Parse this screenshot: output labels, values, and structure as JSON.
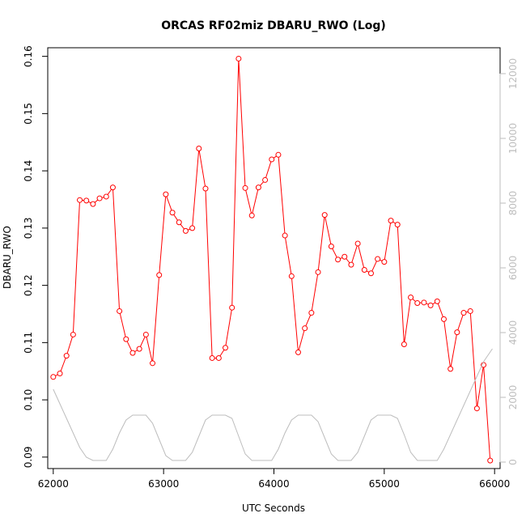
{
  "chart_data": {
    "type": "line",
    "title": "ORCAS RF02miz DBARU_RWO (Log)",
    "xlabel": "UTC Seconds",
    "ylabel": "DBARU_RWO",
    "xlim": [
      61950,
      66050
    ],
    "ylim": [
      0.088,
      0.1615
    ],
    "y2lim": [
      -200,
      12800
    ],
    "x_ticks": [
      62000,
      63000,
      64000,
      65000,
      66000
    ],
    "y_ticks": [
      0.09,
      0.1,
      0.11,
      0.12,
      0.13,
      0.14,
      0.15,
      0.16
    ],
    "y_tick_labels": [
      "0.09",
      "0.10",
      "0.11",
      "0.12",
      "0.13",
      "0.14",
      "0.15",
      "0.16"
    ],
    "y2_ticks": [
      0,
      2000,
      4000,
      6000,
      8000,
      10000,
      12000
    ],
    "grid": false,
    "colors": {
      "primary": "#ff0000",
      "secondary": "#bdbdbd"
    },
    "series": [
      {
        "axis": "left",
        "color": "#ff0000",
        "marker": "open-circle",
        "x": [
          62000,
          62060,
          62120,
          62180,
          62240,
          62300,
          62360,
          62420,
          62480,
          62540,
          62600,
          62660,
          62720,
          62780,
          62840,
          62900,
          62960,
          63020,
          63080,
          63140,
          63200,
          63260,
          63320,
          63380,
          63440,
          63500,
          63560,
          63620,
          63680,
          63740,
          63800,
          63860,
          63920,
          63980,
          64040,
          64100,
          64160,
          64220,
          64280,
          64340,
          64400,
          64460,
          64520,
          64580,
          64640,
          64700,
          64760,
          64820,
          64880,
          64940,
          65000,
          65060,
          65120,
          65180,
          65240,
          65300,
          65360,
          65420,
          65480,
          65540,
          65600,
          65660,
          65720,
          65780,
          65840,
          65900,
          65960
        ],
        "values": [
          0.104,
          0.1046,
          0.1077,
          0.1114,
          0.1349,
          0.1348,
          0.1342,
          0.1352,
          0.1355,
          0.1371,
          0.1155,
          0.1106,
          0.1082,
          0.1089,
          0.1114,
          0.1064,
          0.1218,
          0.1359,
          0.1327,
          0.131,
          0.1295,
          0.13,
          0.1439,
          0.1369,
          0.1073,
          0.1073,
          0.1091,
          0.1161,
          0.1596,
          0.137,
          0.1322,
          0.1371,
          0.1384,
          0.142,
          0.1428,
          0.1287,
          0.1216,
          0.1083,
          0.1125,
          0.1152,
          0.1223,
          0.1323,
          0.1268,
          0.1245,
          0.125,
          0.1236,
          0.1273,
          0.1227,
          0.1221,
          0.1246,
          0.1241,
          0.1313,
          0.1306,
          0.1097,
          0.1179,
          0.1169,
          0.117,
          0.1165,
          0.1172,
          0.1141,
          0.1054,
          0.1118,
          0.1152,
          0.1155,
          0.0985,
          0.1061,
          0.0894
        ]
      },
      {
        "axis": "right",
        "color": "#bdbdbd",
        "marker": "none",
        "x": [
          62000,
          62060,
          62120,
          62180,
          62240,
          62300,
          62360,
          62420,
          62480,
          62540,
          62600,
          62660,
          62720,
          62780,
          62840,
          62900,
          62960,
          63020,
          63080,
          63140,
          63200,
          63260,
          63320,
          63380,
          63440,
          63500,
          63560,
          63620,
          63680,
          63740,
          63800,
          63860,
          63920,
          63980,
          64040,
          64100,
          64160,
          64220,
          64280,
          64340,
          64400,
          64460,
          64520,
          64580,
          64640,
          64700,
          64760,
          64820,
          64880,
          64940,
          65000,
          65060,
          65120,
          65180,
          65240,
          65300,
          65360,
          65420,
          65480,
          65540,
          65600,
          65660,
          65720,
          65780,
          65840,
          65900,
          65980
        ],
        "values": [
          2250,
          1800,
          1350,
          900,
          450,
          150,
          50,
          50,
          50,
          400,
          900,
          1300,
          1450,
          1450,
          1450,
          1200,
          700,
          200,
          50,
          50,
          50,
          300,
          800,
          1300,
          1450,
          1450,
          1450,
          1350,
          800,
          250,
          50,
          50,
          50,
          50,
          400,
          900,
          1300,
          1450,
          1450,
          1450,
          1250,
          750,
          250,
          50,
          50,
          50,
          300,
          800,
          1300,
          1450,
          1450,
          1450,
          1350,
          850,
          300,
          50,
          50,
          50,
          50,
          400,
          850,
          1300,
          1750,
          2200,
          2650,
          3100,
          3500
        ]
      }
    ]
  }
}
